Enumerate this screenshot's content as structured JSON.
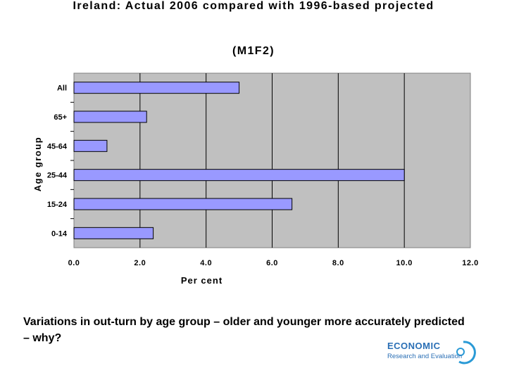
{
  "chart_data": {
    "type": "bar",
    "orientation": "horizontal",
    "title_line1": "Ireland: Actual 2006 compared with 1996-based projected",
    "title_line2": "(M1F2)",
    "xlabel": "Per cent",
    "ylabel": "Age group",
    "categories": [
      "All",
      "65+",
      "45-64",
      "25-44",
      "15-24",
      "0-14"
    ],
    "values": [
      5.0,
      2.2,
      1.0,
      10.0,
      6.6,
      2.4
    ],
    "xlim": [
      0,
      12
    ],
    "xticks": [
      "0.0",
      "2.0",
      "4.0",
      "6.0",
      "8.0",
      "10.0",
      "12.0"
    ],
    "grid": "vertical major lines",
    "legend": "none",
    "colors": {
      "bar": "#9999ff",
      "bar_border": "#000000",
      "plot_bg": "#c0c0c0"
    }
  },
  "caption": "Variations in out-turn by age group – older and younger more accurately predicted – why?",
  "logo": {
    "line1": "ECONOMIC",
    "line2": "Research and Evaluation",
    "color": "#2a6fb5"
  }
}
